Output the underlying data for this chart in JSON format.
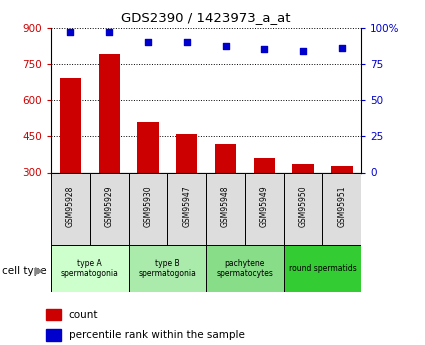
{
  "title": "GDS2390 / 1423973_a_at",
  "samples": [
    "GSM95928",
    "GSM95929",
    "GSM95930",
    "GSM95947",
    "GSM95948",
    "GSM95949",
    "GSM95950",
    "GSM95951"
  ],
  "counts": [
    690,
    790,
    510,
    460,
    420,
    360,
    335,
    325
  ],
  "percentile_ranks": [
    97,
    97,
    90,
    90,
    87,
    85,
    84,
    86
  ],
  "ylim_left": [
    300,
    900
  ],
  "ylim_right": [
    0,
    100
  ],
  "yticks_left": [
    300,
    450,
    600,
    750,
    900
  ],
  "yticks_right": [
    0,
    25,
    50,
    75,
    100
  ],
  "bar_color": "#cc0000",
  "dot_color": "#0000cc",
  "cell_groups": [
    {
      "label": "type A\nspermatogonia",
      "start": 0,
      "end": 2,
      "color": "#ccffcc"
    },
    {
      "label": "type B\nspermatogonia",
      "start": 2,
      "end": 4,
      "color": "#aaeaaa"
    },
    {
      "label": "pachytene\nspermatocytes",
      "start": 4,
      "end": 6,
      "color": "#88dd88"
    },
    {
      "label": "round spermatids",
      "start": 6,
      "end": 8,
      "color": "#33cc33"
    }
  ],
  "cell_type_label": "cell type",
  "legend_count_label": "count",
  "legend_percentile_label": "percentile rank within the sample",
  "tick_label_color_left": "#cc0000",
  "tick_label_color_right": "#0000cc",
  "sample_box_color": "#dddddd",
  "grid_linestyle": ":",
  "grid_color": "black",
  "grid_linewidth": 0.7
}
